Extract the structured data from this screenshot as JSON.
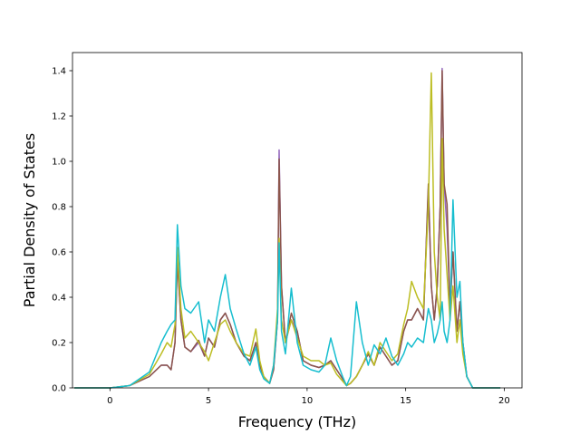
{
  "chart_data": {
    "type": "line",
    "title": "",
    "xlabel": "Frequency (THz)",
    "ylabel": "Partial Density of States",
    "xlim": [
      -1.9,
      20.9
    ],
    "ylim": [
      0.0,
      1.48
    ],
    "xticks": [
      0,
      5,
      10,
      15,
      20
    ],
    "yticks": [
      0.0,
      0.2,
      0.4,
      0.6,
      0.8,
      1.0,
      1.2,
      1.4
    ],
    "xtick_labels": [
      "0",
      "5",
      "10",
      "15",
      "20"
    ],
    "ytick_labels": [
      "0.0",
      "0.2",
      "0.4",
      "0.6",
      "0.8",
      "1.0",
      "1.2",
      "1.4"
    ],
    "grid": false,
    "legend": "none",
    "series": [
      {
        "color": "#9467bd",
        "x": [
          -1.8,
          0,
          1,
          2,
          2.6,
          2.9,
          3.1,
          3.3,
          3.42,
          3.6,
          3.8,
          4.1,
          4.5,
          4.8,
          5.0,
          5.3,
          5.6,
          5.85,
          6.1,
          6.4,
          6.8,
          7.1,
          7.4,
          7.6,
          7.8,
          8.1,
          8.3,
          8.5,
          8.58,
          8.7,
          8.9,
          9.2,
          9.5,
          9.8,
          10.2,
          10.6,
          10.9,
          11.2,
          11.5,
          11.8,
          12.0,
          12.2,
          12.5,
          12.8,
          13.1,
          13.4,
          13.7,
          14.0,
          14.3,
          14.6,
          14.9,
          15.1,
          15.3,
          15.6,
          15.9,
          16.15,
          16.3,
          16.45,
          16.6,
          16.75,
          16.85,
          16.95,
          17.1,
          17.25,
          17.4,
          17.6,
          17.75,
          17.9,
          18.1,
          18.4,
          19.0,
          19.8
        ],
        "y": [
          0,
          0,
          0.01,
          0.05,
          0.1,
          0.1,
          0.08,
          0.2,
          0.58,
          0.3,
          0.18,
          0.16,
          0.2,
          0.14,
          0.22,
          0.18,
          0.3,
          0.33,
          0.28,
          0.2,
          0.14,
          0.12,
          0.2,
          0.1,
          0.05,
          0.02,
          0.08,
          0.3,
          1.05,
          0.45,
          0.2,
          0.3,
          0.25,
          0.12,
          0.1,
          0.09,
          0.1,
          0.12,
          0.08,
          0.04,
          0.01,
          0.02,
          0.05,
          0.1,
          0.15,
          0.1,
          0.18,
          0.14,
          0.1,
          0.12,
          0.25,
          0.3,
          0.3,
          0.35,
          0.3,
          0.88,
          0.45,
          0.3,
          0.45,
          0.8,
          1.41,
          0.9,
          0.7,
          0.35,
          0.6,
          0.25,
          0.38,
          0.2,
          0.05,
          0,
          0,
          0
        ]
      },
      {
        "color": "#8c564b",
        "x": [
          -1.8,
          0,
          1,
          2,
          2.6,
          2.9,
          3.1,
          3.3,
          3.42,
          3.6,
          3.8,
          4.1,
          4.5,
          4.8,
          5.0,
          5.3,
          5.6,
          5.85,
          6.1,
          6.4,
          6.8,
          7.1,
          7.4,
          7.6,
          7.8,
          8.1,
          8.3,
          8.5,
          8.58,
          8.7,
          8.9,
          9.2,
          9.5,
          9.8,
          10.2,
          10.6,
          10.9,
          11.2,
          11.5,
          11.8,
          12.0,
          12.2,
          12.5,
          12.8,
          13.1,
          13.4,
          13.7,
          14.0,
          14.3,
          14.6,
          14.9,
          15.1,
          15.3,
          15.6,
          15.9,
          16.15,
          16.3,
          16.45,
          16.6,
          16.75,
          16.85,
          16.95,
          17.1,
          17.25,
          17.4,
          17.6,
          17.75,
          17.9,
          18.1,
          18.4,
          19.0,
          19.8
        ],
        "y": [
          0,
          0,
          0.01,
          0.05,
          0.1,
          0.1,
          0.08,
          0.2,
          0.56,
          0.3,
          0.18,
          0.16,
          0.21,
          0.14,
          0.22,
          0.18,
          0.3,
          0.33,
          0.28,
          0.2,
          0.14,
          0.12,
          0.2,
          0.1,
          0.05,
          0.02,
          0.08,
          0.3,
          1.01,
          0.45,
          0.2,
          0.33,
          0.25,
          0.12,
          0.1,
          0.09,
          0.1,
          0.12,
          0.08,
          0.04,
          0.01,
          0.02,
          0.05,
          0.1,
          0.15,
          0.1,
          0.18,
          0.14,
          0.1,
          0.12,
          0.25,
          0.3,
          0.3,
          0.35,
          0.3,
          0.9,
          0.45,
          0.3,
          0.45,
          0.8,
          1.4,
          0.9,
          0.81,
          0.35,
          0.6,
          0.25,
          0.38,
          0.2,
          0.05,
          0,
          0,
          0
        ]
      },
      {
        "color": "#bcbd22",
        "x": [
          -1.8,
          0,
          1,
          2,
          2.6,
          2.9,
          3.1,
          3.3,
          3.42,
          3.6,
          3.8,
          4.1,
          4.5,
          4.8,
          5.0,
          5.3,
          5.6,
          5.85,
          6.1,
          6.4,
          6.8,
          7.1,
          7.4,
          7.6,
          7.8,
          8.1,
          8.3,
          8.5,
          8.58,
          8.7,
          8.9,
          9.2,
          9.5,
          9.8,
          10.2,
          10.6,
          10.9,
          11.2,
          11.5,
          11.8,
          12.0,
          12.2,
          12.5,
          12.8,
          13.1,
          13.4,
          13.7,
          14.0,
          14.3,
          14.6,
          14.9,
          15.1,
          15.3,
          15.6,
          15.9,
          16.15,
          16.3,
          16.45,
          16.6,
          16.75,
          16.85,
          16.95,
          17.1,
          17.25,
          17.4,
          17.6,
          17.75,
          17.9,
          18.1,
          18.4,
          19.0,
          19.8
        ],
        "y": [
          0,
          0,
          0.01,
          0.06,
          0.15,
          0.2,
          0.18,
          0.28,
          0.62,
          0.35,
          0.22,
          0.25,
          0.2,
          0.16,
          0.12,
          0.2,
          0.28,
          0.3,
          0.25,
          0.2,
          0.15,
          0.14,
          0.26,
          0.12,
          0.05,
          0.02,
          0.1,
          0.35,
          0.66,
          0.3,
          0.2,
          0.3,
          0.22,
          0.14,
          0.12,
          0.12,
          0.1,
          0.11,
          0.06,
          0.03,
          0.01,
          0.02,
          0.05,
          0.1,
          0.16,
          0.1,
          0.2,
          0.16,
          0.12,
          0.15,
          0.28,
          0.35,
          0.47,
          0.4,
          0.35,
          0.8,
          1.39,
          0.6,
          0.4,
          0.3,
          1.1,
          0.7,
          0.5,
          0.3,
          0.45,
          0.2,
          0.3,
          0.15,
          0.05,
          0,
          0,
          0
        ]
      },
      {
        "color": "#17becf",
        "x": [
          -1.8,
          0,
          1,
          2,
          2.6,
          2.9,
          3.1,
          3.3,
          3.42,
          3.6,
          3.8,
          4.1,
          4.5,
          4.8,
          5.0,
          5.3,
          5.6,
          5.85,
          6.1,
          6.4,
          6.8,
          7.1,
          7.4,
          7.6,
          7.8,
          8.1,
          8.3,
          8.5,
          8.58,
          8.7,
          8.9,
          9.2,
          9.5,
          9.8,
          10.2,
          10.6,
          10.9,
          11.2,
          11.5,
          11.8,
          12.0,
          12.2,
          12.5,
          12.8,
          13.1,
          13.4,
          13.7,
          14.0,
          14.3,
          14.6,
          14.9,
          15.1,
          15.3,
          15.6,
          15.9,
          16.15,
          16.3,
          16.45,
          16.6,
          16.75,
          16.85,
          16.95,
          17.1,
          17.25,
          17.4,
          17.6,
          17.75,
          17.9,
          18.1,
          18.4,
          19.0,
          19.8
        ],
        "y": [
          0,
          0,
          0.01,
          0.07,
          0.2,
          0.25,
          0.28,
          0.3,
          0.72,
          0.45,
          0.35,
          0.33,
          0.38,
          0.2,
          0.3,
          0.25,
          0.4,
          0.5,
          0.35,
          0.26,
          0.15,
          0.1,
          0.18,
          0.08,
          0.04,
          0.02,
          0.1,
          0.3,
          0.64,
          0.25,
          0.15,
          0.44,
          0.2,
          0.1,
          0.08,
          0.07,
          0.1,
          0.22,
          0.12,
          0.05,
          0.01,
          0.05,
          0.38,
          0.2,
          0.1,
          0.19,
          0.15,
          0.22,
          0.14,
          0.1,
          0.15,
          0.2,
          0.18,
          0.22,
          0.2,
          0.35,
          0.3,
          0.2,
          0.24,
          0.3,
          0.38,
          0.25,
          0.2,
          0.3,
          0.83,
          0.4,
          0.47,
          0.2,
          0.05,
          0,
          0,
          0
        ]
      }
    ]
  }
}
